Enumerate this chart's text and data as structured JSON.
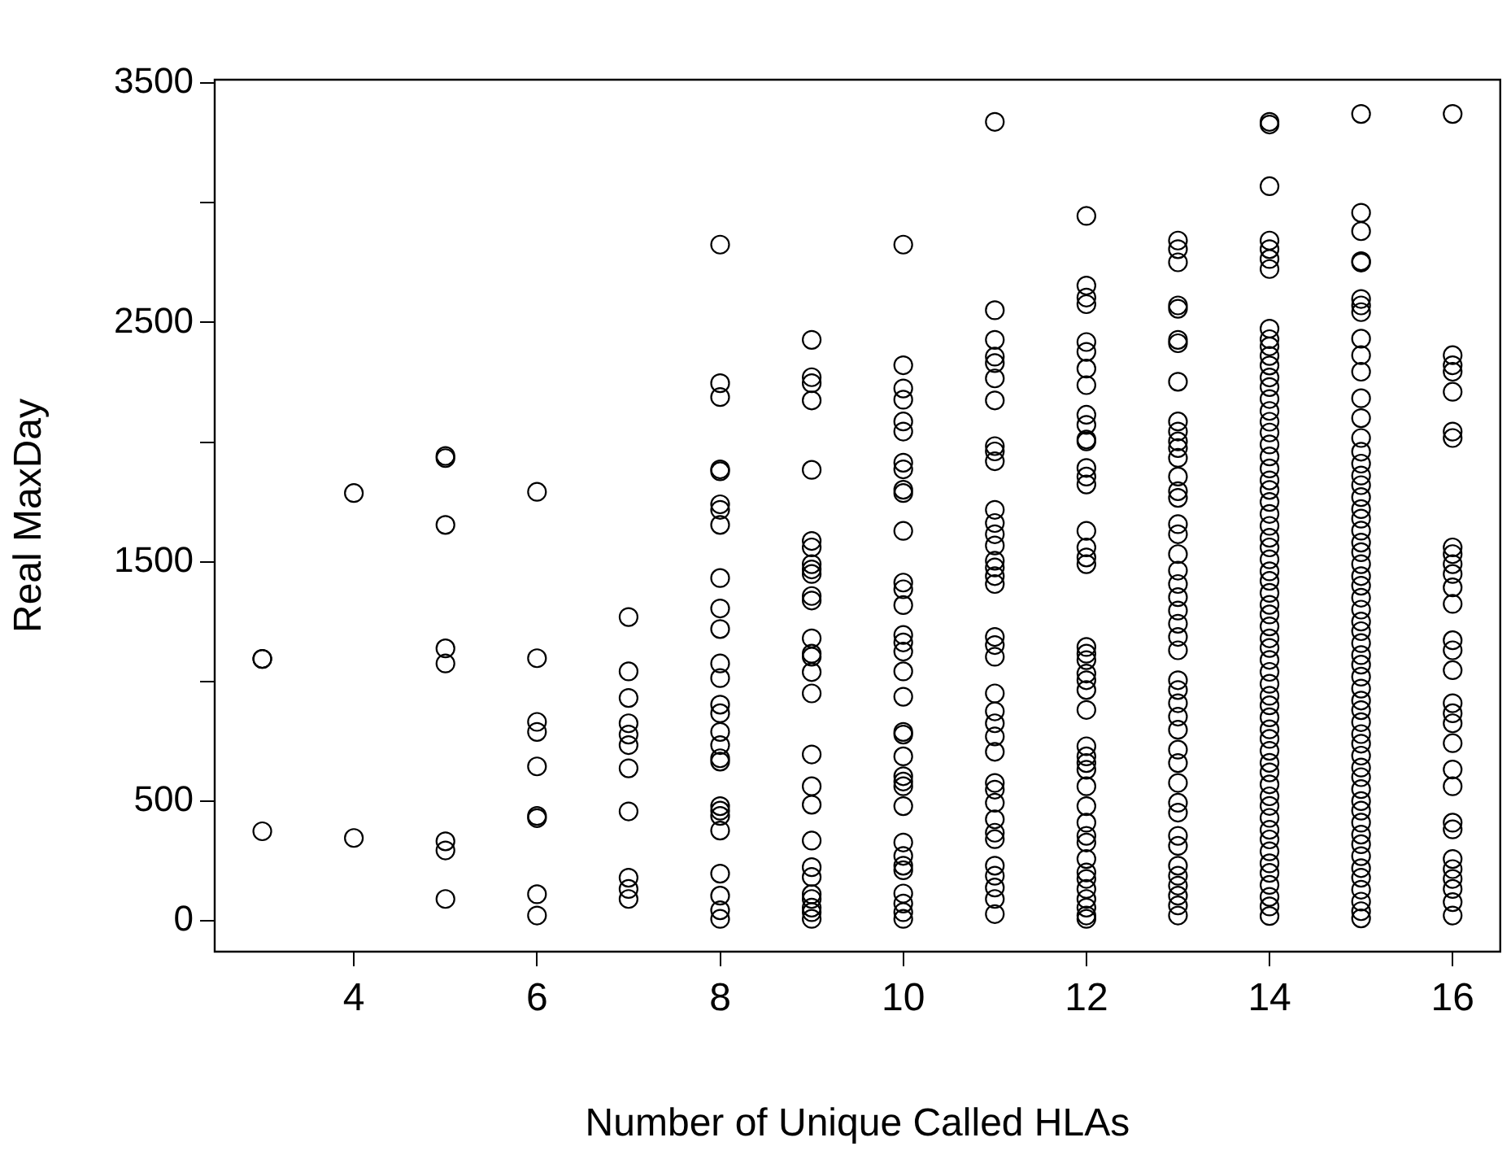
{
  "chart_data": {
    "type": "scatter",
    "xlabel": "Number of Unique Called HLAs",
    "ylabel": "Real MaxDay",
    "xlim": [
      2.48,
      16.52
    ],
    "xticks": [
      4,
      6,
      8,
      10,
      12,
      14,
      16
    ],
    "ylim": [
      -129,
      3514
    ],
    "yticks": [
      0,
      500,
      {
        "value": 1000,
        "label": null
      },
      1500,
      {
        "value": 2000,
        "label": null
      },
      2500,
      {
        "value": 3000,
        "label": null
      },
      3500
    ],
    "grid": false,
    "legend": false,
    "marker": "circle",
    "series": [
      {
        "color": "#000000",
        "x": [
          3,
          3,
          3,
          4,
          4,
          5,
          5,
          5,
          5,
          5,
          5,
          5,
          5,
          6,
          6,
          6,
          6,
          6,
          6,
          6,
          6,
          6,
          7,
          7,
          7,
          7,
          7,
          7,
          7,
          7,
          7,
          7,
          7
        ],
        "values": [
          1094,
          1094,
          374,
          1787,
          346,
          1942,
          1933,
          1654,
          1138,
          1075,
          332,
          294,
          91,
          1792,
          1097,
          831,
          789,
          645,
          438,
          429,
          111,
          22,
          1269,
          1042,
          931,
          825,
          778,
          734,
          637,
          457,
          180,
          133,
          91
        ]
      },
      {
        "color": "#000000",
        "x": [
          8,
          8,
          8,
          8,
          8,
          8,
          8,
          8,
          8,
          8,
          8,
          8,
          8,
          8,
          8,
          8,
          8,
          8,
          8,
          8,
          8,
          8,
          8,
          8,
          8,
          8,
          8
        ],
        "values": [
          2825,
          2246,
          2188,
          1886,
          1878,
          1740,
          1717,
          1654,
          1432,
          1305,
          1219,
          1075,
          1014,
          903,
          867,
          789,
          734,
          679,
          665,
          479,
          460,
          438,
          377,
          197,
          105,
          44,
          8
        ]
      },
      {
        "color": "#000000",
        "x": [
          9,
          9,
          9,
          9,
          9,
          9,
          9,
          9,
          9,
          9,
          9,
          9,
          9,
          9,
          9,
          9,
          9,
          9,
          9,
          9,
          9,
          9,
          9,
          9,
          9,
          9,
          9,
          9
        ],
        "values": [
          2427,
          2271,
          2246,
          2174,
          1884,
          1587,
          1560,
          1490,
          1468,
          1449,
          1357,
          1338,
          1180,
          1116,
          1103,
          1039,
          950,
          695,
          562,
          485,
          335,
          224,
          183,
          111,
          91,
          55,
          36,
          8
        ]
      },
      {
        "color": "#000000",
        "x": [
          10,
          10,
          10,
          10,
          10,
          10,
          10,
          10,
          10,
          10,
          10,
          10,
          10,
          10,
          10,
          10,
          10,
          10,
          10,
          10,
          10,
          10,
          10,
          10,
          10,
          10,
          10,
          10,
          10,
          10,
          10,
          10,
          10,
          10
        ],
        "values": [
          2825,
          2321,
          2224,
          2177,
          2086,
          2044,
          1914,
          1886,
          1801,
          1787,
          1629,
          1413,
          1385,
          1319,
          1194,
          1163,
          1125,
          1042,
          936,
          789,
          778,
          687,
          604,
          582,
          562,
          479,
          327,
          271,
          230,
          211,
          114,
          72,
          36,
          8
        ]
      },
      {
        "color": "#000000",
        "x": [
          11,
          11,
          11,
          11,
          11,
          11,
          11,
          11,
          11,
          11,
          11,
          11,
          11,
          11,
          11,
          11,
          11,
          11,
          11,
          11,
          11,
          11,
          11,
          11,
          11,
          11,
          11,
          11,
          11,
          11,
          11,
          11,
          11,
          11,
          11,
          11,
          11
        ],
        "values": [
          3338,
          2551,
          2427,
          2357,
          2330,
          2266,
          2174,
          1983,
          1961,
          1920,
          1717,
          1662,
          1615,
          1568,
          1504,
          1476,
          1440,
          1407,
          1186,
          1152,
          1103,
          950,
          875,
          825,
          770,
          706,
          576,
          548,
          493,
          424,
          368,
          341,
          230,
          188,
          139,
          91,
          28
        ]
      },
      {
        "color": "#000000",
        "x": [
          12,
          12,
          12,
          12,
          12,
          12,
          12,
          12,
          12,
          12,
          12,
          12,
          12,
          12,
          12,
          12,
          12,
          12,
          12,
          12,
          12,
          12,
          12,
          12,
          12,
          12,
          12,
          12,
          12,
          12,
          12,
          12,
          12,
          12,
          12,
          12,
          12,
          12,
          12,
          12,
          12,
          12,
          12
        ],
        "values": [
          2945,
          2654,
          2604,
          2576,
          2418,
          2377,
          2307,
          2238,
          2114,
          2072,
          2011,
          2003,
          1892,
          1856,
          1823,
          1629,
          1560,
          1518,
          1490,
          1144,
          1116,
          1089,
          1033,
          1005,
          964,
          881,
          729,
          687,
          659,
          631,
          562,
          479,
          410,
          355,
          327,
          258,
          202,
          175,
          133,
          91,
          55,
          22,
          8
        ]
      },
      {
        "color": "#000000",
        "x": [
          13,
          13,
          13,
          13,
          13,
          13,
          13,
          13,
          13,
          13,
          13,
          13,
          13,
          13,
          13,
          13,
          13,
          13,
          13,
          13,
          13,
          13,
          13,
          13,
          13,
          13,
          13,
          13,
          13,
          13,
          13,
          13,
          13,
          13,
          13,
          13,
          13,
          13,
          13,
          13,
          13,
          13,
          13,
          13
        ],
        "values": [
          2842,
          2806,
          2751,
          2571,
          2557,
          2427,
          2413,
          2252,
          2086,
          2044,
          2003,
          1975,
          1934,
          1856,
          1795,
          1767,
          1657,
          1615,
          1532,
          1463,
          1407,
          1352,
          1296,
          1241,
          1186,
          1130,
          1005,
          964,
          909,
          853,
          798,
          715,
          659,
          576,
          493,
          452,
          355,
          313,
          230,
          188,
          147,
          105,
          64,
          22
        ]
      },
      {
        "color": "#000000",
        "x": [
          14,
          14,
          14,
          14,
          14,
          14,
          14,
          14,
          14,
          14,
          14,
          14,
          14,
          14,
          14,
          14,
          14,
          14,
          14,
          14,
          14,
          14,
          14,
          14,
          14,
          14,
          14,
          14,
          14,
          14,
          14,
          14,
          14,
          14,
          14,
          14,
          14,
          14,
          14,
          14,
          14,
          14,
          14,
          14,
          14,
          14,
          14,
          14,
          14,
          14,
          14,
          14,
          14,
          14,
          14,
          14,
          14,
          14,
          14,
          14,
          14
        ],
        "values": [
          3338,
          3327,
          3069,
          2842,
          2806,
          2765,
          2723,
          2474,
          2430,
          2400,
          2360,
          2320,
          2270,
          2230,
          2180,
          2130,
          2085,
          2040,
          1990,
          1940,
          1890,
          1840,
          1800,
          1750,
          1700,
          1650,
          1600,
          1560,
          1510,
          1460,
          1420,
          1370,
          1320,
          1280,
          1230,
          1180,
          1140,
          1090,
          1040,
          990,
          940,
          900,
          850,
          800,
          760,
          710,
          660,
          620,
          570,
          520,
          480,
          430,
          380,
          340,
          290,
          240,
          200,
          150,
          100,
          60,
          20
        ]
      },
      {
        "color": "#000000",
        "x": [
          15,
          15,
          15,
          15,
          15,
          15,
          15,
          15,
          15,
          15,
          15,
          15,
          15,
          15,
          15,
          15,
          15,
          15,
          15,
          15,
          15,
          15,
          15,
          15,
          15,
          15,
          15,
          15,
          15,
          15,
          15,
          15,
          15,
          15,
          15,
          15,
          15,
          15,
          15,
          15,
          15,
          15,
          15,
          15,
          15,
          15,
          15,
          15,
          15,
          15,
          15,
          15,
          15,
          15,
          15,
          15,
          15
        ],
        "values": [
          3371,
          2958,
          2881,
          2756,
          2750,
          2598,
          2571,
          2543,
          2432,
          2363,
          2294,
          2183,
          2100,
          2017,
          1960,
          1910,
          1860,
          1820,
          1770,
          1720,
          1680,
          1630,
          1580,
          1540,
          1490,
          1440,
          1400,
          1350,
          1300,
          1250,
          1210,
          1160,
          1110,
          1070,
          1020,
          970,
          920,
          880,
          830,
          780,
          740,
          690,
          640,
          600,
          550,
          500,
          460,
          410,
          360,
          320,
          270,
          220,
          180,
          130,
          80,
          40,
          10
        ]
      },
      {
        "color": "#000000",
        "x": [
          16,
          16,
          16,
          16,
          16,
          16,
          16,
          16,
          16,
          16,
          16,
          16,
          16,
          16,
          16,
          16,
          16,
          16,
          16,
          16,
          16,
          16,
          16,
          16,
          16,
          16,
          16,
          16,
          16,
          16
        ],
        "values": [
          3371,
          2363,
          2321,
          2294,
          2210,
          2044,
          2017,
          1560,
          1532,
          1490,
          1449,
          1393,
          1324,
          1172,
          1130,
          1047,
          909,
          867,
          825,
          742,
          632,
          562,
          410,
          382,
          258,
          216,
          175,
          133,
          78,
          22
        ]
      }
    ]
  }
}
